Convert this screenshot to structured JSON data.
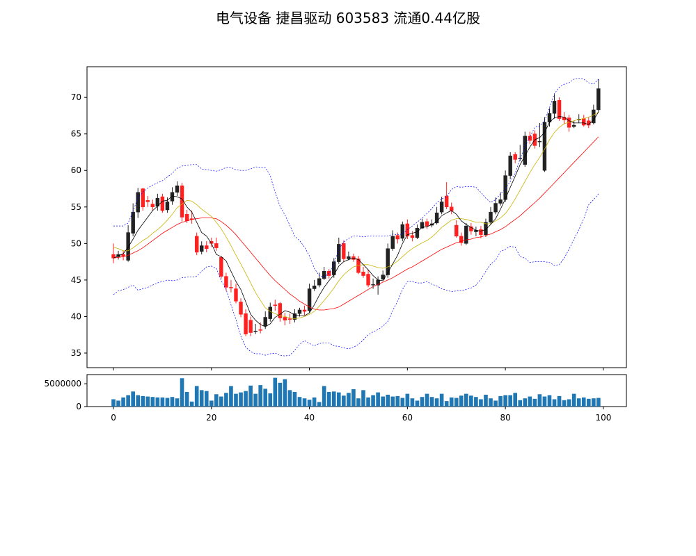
{
  "title": "电气设备 捷昌驱动 603583 流通0.44亿股",
  "chart_data": [
    {
      "type": "candlestick",
      "ylim": [
        33,
        74.2
      ],
      "xlim": [
        -5.4,
        104.7
      ],
      "yticks": [
        35,
        40,
        45,
        50,
        55,
        60,
        65,
        70
      ],
      "grid": false,
      "colors": {
        "up": "#222222",
        "down": "#ff2020",
        "ma_short": "#000000",
        "ma_mid": "#c8b400",
        "ma_long": "#ff0000",
        "bands": "#0000ff"
      },
      "close": [
        48.0,
        48.5,
        48.3,
        51.5,
        54.3,
        57.0,
        55.0,
        55.7,
        55.0,
        56.2,
        54.5,
        55.7,
        57.0,
        57.9,
        53.6,
        53.1,
        53.3,
        48.8,
        49.7,
        49.3,
        50.0,
        49.4,
        45.5,
        44.0,
        43.9,
        42.1,
        40.3,
        37.6,
        37.8,
        38.0,
        38.1,
        39.9,
        41.3,
        41.5,
        39.8,
        39.5,
        39.6,
        40.4,
        40.9,
        40.7,
        43.8,
        44.2,
        45.2,
        46.2,
        45.6,
        47.5,
        49.9,
        47.9,
        48.2,
        47.8,
        46.0,
        45.6,
        44.3,
        44.4,
        45.0,
        45.7,
        49.3,
        51.0,
        50.6,
        52.6,
        51.0,
        50.8,
        52.1,
        52.9,
        52.4,
        52.7,
        54.2,
        55.7,
        55.0,
        54.5,
        51.0,
        50.1,
        52.4,
        51.7,
        51.8,
        51.2,
        52.9,
        54.3,
        55.5,
        56.0,
        59.3,
        62.0,
        61.5,
        61.7,
        64.7,
        64.1,
        63.4,
        64.0,
        66.6,
        67.8,
        69.5,
        67.1,
        66.9,
        65.9,
        66.2,
        67.0,
        66.2,
        66.2,
        68.3,
        71.2
      ],
      "open": [
        48.5,
        48.2,
        48.5,
        47.7,
        51.4,
        54.3,
        57.5,
        55.9,
        55.4,
        55.1,
        56.4,
        54.6,
        55.8,
        57.0,
        57.9,
        54.0,
        53.4,
        51.0,
        48.9,
        49.7,
        50.3,
        50.0,
        48.1,
        45.5,
        44.0,
        43.8,
        42.0,
        40.4,
        39.5,
        38.0,
        38.2,
        38.7,
        39.7,
        41.6,
        41.8,
        39.9,
        39.7,
        39.6,
        40.4,
        40.9,
        40.8,
        43.8,
        44.3,
        45.2,
        46.2,
        45.7,
        47.5,
        50.0,
        47.9,
        48.2,
        47.9,
        46.1,
        45.8,
        44.4,
        44.3,
        45.1,
        45.7,
        49.3,
        51.1,
        50.7,
        52.7,
        51.1,
        50.8,
        52.1,
        53.0,
        52.5,
        52.8,
        54.3,
        56.5,
        55.0,
        52.5,
        51.0,
        50.0,
        52.3,
        51.6,
        51.9,
        51.2,
        52.9,
        54.3,
        55.5,
        56.0,
        59.3,
        62.2,
        61.7,
        60.8,
        64.7,
        65.0,
        63.9,
        60.0,
        66.6,
        67.8,
        69.6,
        67.3,
        67.2,
        66.0,
        66.9,
        67.1,
        66.8,
        66.5,
        68.3
      ],
      "high": [
        50.0,
        49.0,
        49.0,
        52.5,
        55.5,
        57.6,
        57.6,
        56.5,
        56.0,
        56.8,
        56.8,
        56.3,
        57.7,
        58.5,
        58.3,
        54.6,
        54.5,
        51.5,
        50.3,
        50.3,
        50.8,
        50.8,
        48.3,
        46.0,
        45.0,
        44.5,
        42.5,
        41.0,
        40.0,
        39.0,
        39.2,
        40.7,
        41.9,
        42.3,
        42.0,
        40.5,
        40.4,
        41.0,
        41.2,
        41.5,
        44.5,
        45.0,
        46.0,
        46.8,
        46.5,
        48.0,
        50.8,
        50.4,
        48.9,
        48.6,
        48.3,
        46.8,
        46.4,
        45.2,
        45.5,
        46.3,
        50.0,
        51.8,
        51.5,
        53.0,
        53.3,
        51.7,
        52.6,
        53.4,
        53.4,
        53.3,
        55.0,
        56.4,
        58.4,
        55.6,
        53.2,
        51.5,
        52.8,
        52.8,
        52.3,
        52.4,
        53.4,
        55.0,
        56.3,
        57.0,
        60.0,
        62.5,
        62.5,
        63.5,
        65.3,
        65.3,
        65.5,
        66.5,
        67.3,
        68.5,
        70.4,
        70.0,
        68.0,
        67.6,
        66.8,
        67.7,
        67.6,
        67.3,
        69.0,
        72.5
      ],
      "low": [
        47.3,
        47.8,
        47.7,
        47.5,
        51.0,
        53.5,
        54.5,
        55.0,
        54.5,
        54.5,
        54.2,
        54.2,
        55.3,
        56.5,
        53.0,
        52.8,
        52.7,
        48.4,
        48.5,
        48.8,
        49.5,
        49.0,
        45.2,
        43.5,
        43.3,
        41.8,
        39.9,
        37.3,
        37.3,
        37.6,
        37.7,
        38.3,
        39.3,
        40.8,
        39.3,
        38.8,
        39.0,
        39.2,
        40.0,
        40.2,
        40.5,
        43.5,
        44.0,
        45.0,
        45.2,
        45.3,
        47.2,
        47.5,
        47.7,
        47.5,
        45.8,
        45.3,
        44.0,
        43.8,
        43.0,
        45.0,
        45.3,
        49.0,
        50.0,
        50.3,
        50.6,
        50.3,
        50.6,
        52.0,
        52.0,
        52.2,
        52.6,
        54.0,
        54.7,
        54.0,
        50.8,
        49.7,
        49.8,
        51.2,
        51.0,
        50.7,
        50.9,
        52.6,
        54.0,
        55.2,
        55.7,
        58.8,
        61.0,
        61.3,
        60.5,
        63.6,
        63.0,
        63.2,
        59.8,
        66.0,
        67.1,
        66.8,
        66.3,
        65.3,
        65.8,
        66.5,
        66.0,
        65.8,
        66.3,
        68.0
      ],
      "ma_short": [
        48.0,
        48.3,
        48.6,
        49.5,
        50.6,
        51.8,
        52.7,
        53.6,
        54.5,
        55.1,
        55.8,
        55.9,
        56.5,
        56.4,
        56.1,
        55.0,
        54.3,
        52.9,
        51.5,
        51.0,
        50.0,
        48.5,
        48.2,
        47.6,
        46.2,
        44.8,
        43.7,
        42.0,
        40.3,
        39.5,
        38.9,
        38.6,
        39.0,
        39.9,
        40.3,
        40.8,
        40.6,
        40.2,
        40.1,
        40.1,
        40.5,
        41.6,
        42.9,
        44.0,
        44.9,
        45.7,
        46.9,
        47.5,
        47.8,
        48.0,
        47.8,
        47.1,
        46.4,
        45.6,
        45.0,
        44.9,
        46.0,
        47.2,
        48.4,
        50.0,
        51.2,
        51.4,
        51.6,
        52.2,
        52.3,
        52.6,
        53.0,
        53.8,
        54.2,
        54.5,
        54.0,
        53.1,
        52.6,
        52.2,
        51.8,
        51.7,
        51.9,
        52.6,
        53.4,
        54.7,
        56.1,
        57.7,
        59.2,
        60.8,
        62.0,
        63.2,
        64.2,
        64.5,
        65.2,
        66.6,
        67.2,
        67.4,
        67.3,
        66.8,
        66.5,
        66.5,
        66.5,
        66.3,
        66.9,
        68.0
      ],
      "ma_mid": [
        49.5,
        49.3,
        49.0,
        49.0,
        49.4,
        49.9,
        50.4,
        50.8,
        51.4,
        51.9,
        52.5,
        53.2,
        54.0,
        54.9,
        55.4,
        55.9,
        55.8,
        55.3,
        54.7,
        54.2,
        53.7,
        52.9,
        52.0,
        50.9,
        49.7,
        48.4,
        47.2,
        45.9,
        44.6,
        43.3,
        42.2,
        41.2,
        40.7,
        40.4,
        40.1,
        40.0,
        39.8,
        39.7,
        39.8,
        40.0,
        40.3,
        40.7,
        41.4,
        42.2,
        43.0,
        43.9,
        44.9,
        45.7,
        46.3,
        46.8,
        47.0,
        47.1,
        47.1,
        46.9,
        46.7,
        46.6,
        46.8,
        47.1,
        47.6,
        48.2,
        48.8,
        49.3,
        49.7,
        50.1,
        50.4,
        50.9,
        51.5,
        52.2,
        52.7,
        53.2,
        53.4,
        53.4,
        53.3,
        53.1,
        52.9,
        52.9,
        52.7,
        52.7,
        53.1,
        53.5,
        54.1,
        55.0,
        56.1,
        57.3,
        58.5,
        59.7,
        60.8,
        61.8,
        62.9,
        64.2,
        65.2,
        65.9,
        66.4,
        66.6,
        66.8,
        67.0,
        67.1,
        67.3,
        67.6,
        68.0
      ],
      "ma_long": [
        48.0,
        48.1,
        48.2,
        48.4,
        48.7,
        49.0,
        49.4,
        49.9,
        50.4,
        50.9,
        51.4,
        51.8,
        52.2,
        52.6,
        52.9,
        53.1,
        53.3,
        53.4,
        53.5,
        53.5,
        53.5,
        53.4,
        53.0,
        52.5,
        51.9,
        51.2,
        50.4,
        49.6,
        48.8,
        48.0,
        47.2,
        46.4,
        45.6,
        44.9,
        44.3,
        43.7,
        43.1,
        42.6,
        42.1,
        41.7,
        41.3,
        41.0,
        40.9,
        40.9,
        41.0,
        41.1,
        41.3,
        41.7,
        42.1,
        42.5,
        42.9,
        43.3,
        43.7,
        44.1,
        44.4,
        44.7,
        45.0,
        45.3,
        45.7,
        46.1,
        46.5,
        46.8,
        47.2,
        47.6,
        48.0,
        48.4,
        48.8,
        49.2,
        49.5,
        49.8,
        50.1,
        50.3,
        50.5,
        50.6,
        50.8,
        50.9,
        51.1,
        51.3,
        51.6,
        51.9,
        52.3,
        52.8,
        53.3,
        53.8,
        54.4,
        55.0,
        55.6,
        56.2,
        56.9,
        57.6,
        58.3,
        59.0,
        59.7,
        60.4,
        61.1,
        61.8,
        62.5,
        63.2,
        63.9,
        64.6
      ],
      "upper_band": [
        52.4,
        52.4,
        52.4,
        52.8,
        54.4,
        56.3,
        57.0,
        57.6,
        58.0,
        58.3,
        58.6,
        59.1,
        59.6,
        60.3,
        60.6,
        60.7,
        60.8,
        60.8,
        60.2,
        60.1,
        60.0,
        59.9,
        60.1,
        60.4,
        60.4,
        60.1,
        60.0,
        60.0,
        60.2,
        60.5,
        60.4,
        60.4,
        59.3,
        57.0,
        55.1,
        53.9,
        52.5,
        51.0,
        50.4,
        49.5,
        48.3,
        46.6,
        45.6,
        45.4,
        45.9,
        47.2,
        49.2,
        50.2,
        50.7,
        51.0,
        51.0,
        50.9,
        51.0,
        51.0,
        51.0,
        51.0,
        51.0,
        51.3,
        51.2,
        51.3,
        51.9,
        52.4,
        52.9,
        53.5,
        54.1,
        54.8,
        55.6,
        56.1,
        56.4,
        57.4,
        57.8,
        57.7,
        57.8,
        57.8,
        57.7,
        57.0,
        56.2,
        55.6,
        56.0,
        56.8,
        57.5,
        58.5,
        59.6,
        61.6,
        63.2,
        64.6,
        65.9,
        66.1,
        66.8,
        68.6,
        70.5,
        71.4,
        71.8,
        72.0,
        72.5,
        72.6,
        72.5,
        72.0,
        71.8,
        72.5
      ],
      "lower_band": [
        43.0,
        43.5,
        43.7,
        44.0,
        44.3,
        43.6,
        43.8,
        44.0,
        44.3,
        44.6,
        44.8,
        45.0,
        44.9,
        45.0,
        45.3,
        45.4,
        45.4,
        45.5,
        46.2,
        46.8,
        46.9,
        46.6,
        44.9,
        43.7,
        41.6,
        39.6,
        37.3,
        35.8,
        35.2,
        34.9,
        34.9,
        34.7,
        34.9,
        35.0,
        34.7,
        34.6,
        34.7,
        35.4,
        36.2,
        36.7,
        36.3,
        36.0,
        36.3,
        36.4,
        36.4,
        36.0,
        35.9,
        35.7,
        35.6,
        35.8,
        36.2,
        36.8,
        37.5,
        37.9,
        38.2,
        38.7,
        39.3,
        40.8,
        42.1,
        43.7,
        44.8,
        44.8,
        44.6,
        44.6,
        44.8,
        44.4,
        44.2,
        43.8,
        43.6,
        43.4,
        43.5,
        43.5,
        43.7,
        43.9,
        44.3,
        45.1,
        46.2,
        47.2,
        47.7,
        48.9,
        49.2,
        49.6,
        49.5,
        48.2,
        48.0,
        47.4,
        47.5,
        47.5,
        47.5,
        47.4,
        47.0,
        47.1,
        48.0,
        49.2,
        50.6,
        51.9,
        53.4,
        55.3,
        56.0,
        56.8
      ]
    },
    {
      "type": "bar",
      "ylim": [
        0,
        7000000
      ],
      "yticks": [
        0,
        5000000
      ],
      "xticks": [
        0,
        20,
        40,
        60,
        80,
        100
      ],
      "color": "#1f77b4",
      "values": [
        1600000,
        1300000,
        2000000,
        2500000,
        3300000,
        2500000,
        2300000,
        2200000,
        2100000,
        2000000,
        2000000,
        1900000,
        2100000,
        1800000,
        6200000,
        3200000,
        1100000,
        4500000,
        3600000,
        3400000,
        1300000,
        2700000,
        2200000,
        3000000,
        4500000,
        2800000,
        3100000,
        3400000,
        4600000,
        2800000,
        4700000,
        3900000,
        2900000,
        6300000,
        5200000,
        6000000,
        3600000,
        3200000,
        2100000,
        1800000,
        1500000,
        2000000,
        1000000,
        4500000,
        3200000,
        3300000,
        3100000,
        2400000,
        3000000,
        3800000,
        1800000,
        3600000,
        2000000,
        2500000,
        3100000,
        2200000,
        2600000,
        2200000,
        2300000,
        1900000,
        2800000,
        1800000,
        1300000,
        2100000,
        2800000,
        2100000,
        1800000,
        2800000,
        1200000,
        2000000,
        1900000,
        2400000,
        2800000,
        2400000,
        2100000,
        1600000,
        2600000,
        1800000,
        1300000,
        2300000,
        2500000,
        2500000,
        3000000,
        1400000,
        1800000,
        2200000,
        1700000,
        2700000,
        2200000,
        2500000,
        1600000,
        2300000,
        1400000,
        1600000,
        2800000,
        1800000,
        2000000,
        1700000,
        1800000,
        1900000
      ]
    }
  ]
}
